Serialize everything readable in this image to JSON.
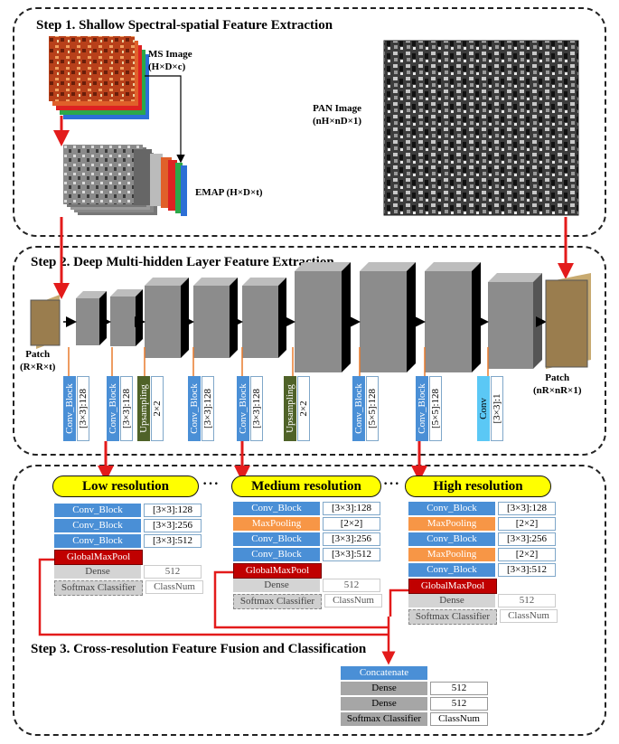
{
  "step1": {
    "title": "Step 1.  Shallow Spectral-spatial Feature Extraction",
    "ms_label": "MS Image",
    "ms_dims": "(H×D×c)",
    "emap_label": "EMAP (H×D×t)",
    "pan_label": "PAN Image",
    "pan_dims": "(nH×nD×1)"
  },
  "step2": {
    "title": "Step 2.  Deep Multi-hidden Layer Feature Extraction",
    "patch_in_label": "Patch",
    "patch_in_dims": "(R×R×t)",
    "patch_out_label": "Patch",
    "patch_out_dims": "(nR×nR×1)",
    "blocks": [
      {
        "name": "Conv_Block",
        "param": "[3×3]:128",
        "color": "#4a8fd6"
      },
      {
        "name": "Conv_Block",
        "param": "[3×3]:128",
        "color": "#4a8fd6"
      },
      {
        "name": "Upsampling",
        "param": "2×2",
        "color": "#4f6228"
      },
      {
        "name": "Conv_Block",
        "param": "[3×3]:128",
        "color": "#4a8fd6"
      },
      {
        "name": "Conv_Block",
        "param": "[3×3]:128",
        "color": "#4a8fd6"
      },
      {
        "name": "Upsampling",
        "param": "2×2",
        "color": "#4f6228"
      },
      {
        "name": "Conv_Block",
        "param": "[5×5]:128",
        "color": "#4a8fd6"
      },
      {
        "name": "Conv_Block",
        "param": "[5×5]:128",
        "color": "#4a8fd6"
      },
      {
        "name": "Conv",
        "param": "[3×3]:1",
        "color": "#5bc8f5"
      }
    ]
  },
  "step3": {
    "title": "Step 3.  Cross-resolution Feature Fusion and Classification",
    "dots": "···",
    "low": {
      "title": "Low resolution",
      "rows": [
        {
          "l": "Conv_Block",
          "r": "[3×3]:128",
          "kind": "conv"
        },
        {
          "l": "Conv_Block",
          "r": "[3×3]:256",
          "kind": "conv"
        },
        {
          "l": "Conv_Block",
          "r": "[3×3]:512",
          "kind": "conv"
        },
        {
          "l": "GlobalMaxPool",
          "r": "",
          "kind": "gmp"
        },
        {
          "l": "Dense",
          "r": "512",
          "kind": "dense"
        },
        {
          "l": "Softmax Classifier",
          "r": "ClassNum",
          "kind": "soft"
        }
      ]
    },
    "medium": {
      "title": "Medium resolution",
      "rows": [
        {
          "l": "Conv_Block",
          "r": "[3×3]:128",
          "kind": "conv"
        },
        {
          "l": "MaxPooling",
          "r": "[2×2]",
          "kind": "max"
        },
        {
          "l": "Conv_Block",
          "r": "[3×3]:256",
          "kind": "conv"
        },
        {
          "l": "Conv_Block",
          "r": "[3×3]:512",
          "kind": "conv"
        },
        {
          "l": "GlobalMaxPool",
          "r": "",
          "kind": "gmp"
        },
        {
          "l": "Dense",
          "r": "512",
          "kind": "dense"
        },
        {
          "l": "Softmax Classifier",
          "r": "ClassNum",
          "kind": "soft"
        }
      ]
    },
    "high": {
      "title": "High resolution",
      "rows": [
        {
          "l": "Conv_Block",
          "r": "[3×3]:128",
          "kind": "conv"
        },
        {
          "l": "MaxPooling",
          "r": "[2×2]",
          "kind": "max"
        },
        {
          "l": "Conv_Block",
          "r": "[3×3]:256",
          "kind": "conv"
        },
        {
          "l": "MaxPooling",
          "r": "[2×2]",
          "kind": "max"
        },
        {
          "l": "Conv_Block",
          "r": "[3×3]:512",
          "kind": "conv"
        },
        {
          "l": "GlobalMaxPool",
          "r": "",
          "kind": "gmp"
        },
        {
          "l": "Dense",
          "r": "512",
          "kind": "dense"
        },
        {
          "l": "Softmax Classifier",
          "r": "ClassNum",
          "kind": "soft"
        }
      ]
    },
    "fusion": {
      "concat": "Concatenate",
      "rows": [
        {
          "l": "Dense",
          "r": "512"
        },
        {
          "l": "Dense",
          "r": "512"
        },
        {
          "l": "Softmax Classifier",
          "r": "ClassNum"
        }
      ]
    }
  },
  "colors": {
    "arrow_red": "#e31b1b",
    "pill_yellow": "#ffff00",
    "conv_blue": "#4a8fd6",
    "maxpool_orange": "#f79646",
    "gmp_red": "#c00000",
    "upsampling_green": "#4f6228",
    "patch_brown": "#9a7d4e"
  }
}
